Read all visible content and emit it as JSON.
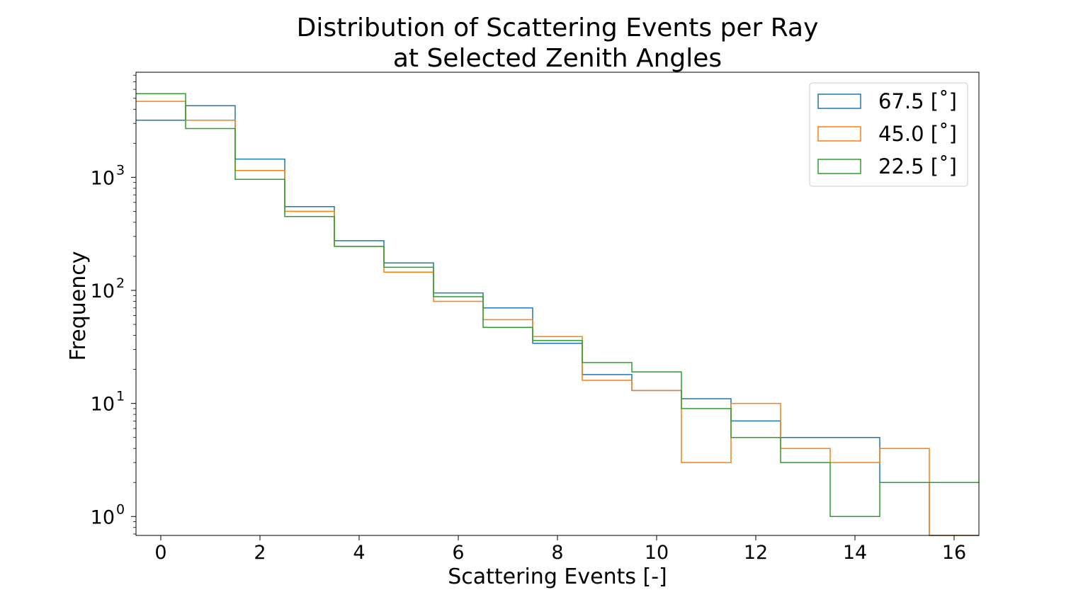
{
  "chart_data": {
    "type": "histogram",
    "title_line1": "Distribution of Scattering Events per Ray",
    "title_line2": "at Selected Zenith Angles",
    "xlabel": "Scattering Events [-]",
    "ylabel": "Frequency",
    "yscale": "log",
    "xlim": [
      -0.5,
      16.5
    ],
    "ylim": [
      0.68,
      8500
    ],
    "x_ticks": [
      0,
      2,
      4,
      6,
      8,
      10,
      12,
      14,
      16
    ],
    "y_ticks": [
      {
        "base": "10",
        "exp": "0",
        "value": 1
      },
      {
        "base": "10",
        "exp": "1",
        "value": 10
      },
      {
        "base": "10",
        "exp": "2",
        "value": 100
      },
      {
        "base": "10",
        "exp": "3",
        "value": 1000
      }
    ],
    "bin_edges": [
      -0.5,
      0.5,
      1.5,
      2.5,
      3.5,
      4.5,
      5.5,
      6.5,
      7.5,
      8.5,
      9.5,
      10.5,
      11.5,
      12.5,
      13.5,
      14.5,
      15.5,
      16.5
    ],
    "legend_position": "top-right",
    "series": [
      {
        "name": "67.5 [˚]",
        "color": "#1f77b4",
        "values": [
          3200,
          4300,
          1450,
          550,
          275,
          175,
          95,
          70,
          34,
          18,
          13,
          11,
          7,
          5,
          5,
          2,
          0
        ]
      },
      {
        "name": "45.0 [˚]",
        "color": "#ff7f0e",
        "values": [
          4700,
          3200,
          1150,
          500,
          245,
          145,
          80,
          55,
          39,
          16,
          13,
          3,
          10,
          4,
          3,
          4,
          0
        ]
      },
      {
        "name": "22.5 [˚]",
        "color": "#2ca02c",
        "values": [
          5500,
          2700,
          960,
          450,
          245,
          160,
          88,
          47,
          36,
          23,
          19,
          9,
          5,
          3,
          1,
          2,
          2
        ]
      }
    ]
  }
}
